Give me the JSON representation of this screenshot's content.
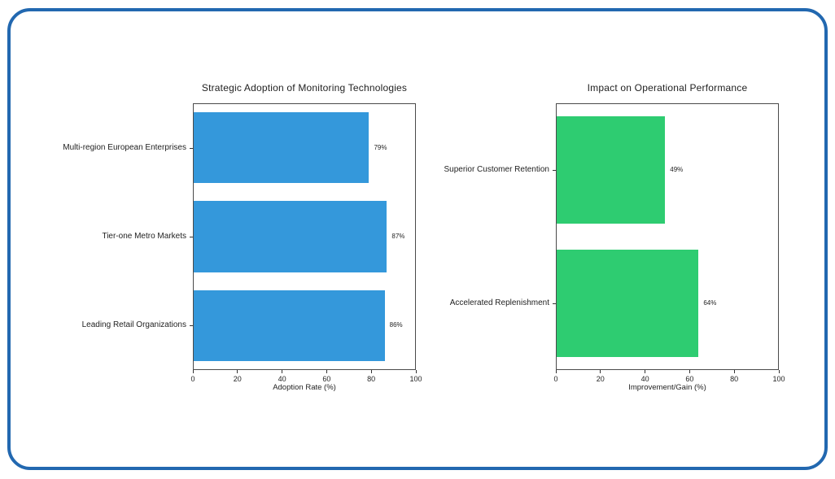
{
  "colors": {
    "card_border": "#2268b0",
    "plot_frame": "#4a4a4a",
    "text": "#1f1f1f",
    "background": "#ffffff"
  },
  "chart_data": [
    {
      "type": "bar",
      "orientation": "horizontal",
      "title": "Strategic Adoption of Monitoring Technologies",
      "categories": [
        "Multi-region European Enterprises",
        "Tier-one Metro Markets",
        "Leading Retail Organizations"
      ],
      "values": [
        79,
        87,
        86
      ],
      "value_labels": [
        "79%",
        "87%",
        "86%"
      ],
      "xlabel": "Adoption Rate (%)",
      "xlim": [
        0,
        100
      ],
      "xticks": [
        0,
        20,
        40,
        60,
        80,
        100
      ],
      "bar_color": "#3498db",
      "grid": false,
      "legend": "none"
    },
    {
      "type": "bar",
      "orientation": "horizontal",
      "title": "Impact on Operational Performance",
      "categories": [
        "Superior Customer Retention",
        "Accelerated Replenishment"
      ],
      "values": [
        49,
        64
      ],
      "value_labels": [
        "49%",
        "64%"
      ],
      "xlabel": "Improvement/Gain (%)",
      "xlim": [
        0,
        100
      ],
      "xticks": [
        0,
        20,
        40,
        60,
        80,
        100
      ],
      "bar_color": "#2ecc71",
      "grid": false,
      "legend": "none"
    }
  ]
}
